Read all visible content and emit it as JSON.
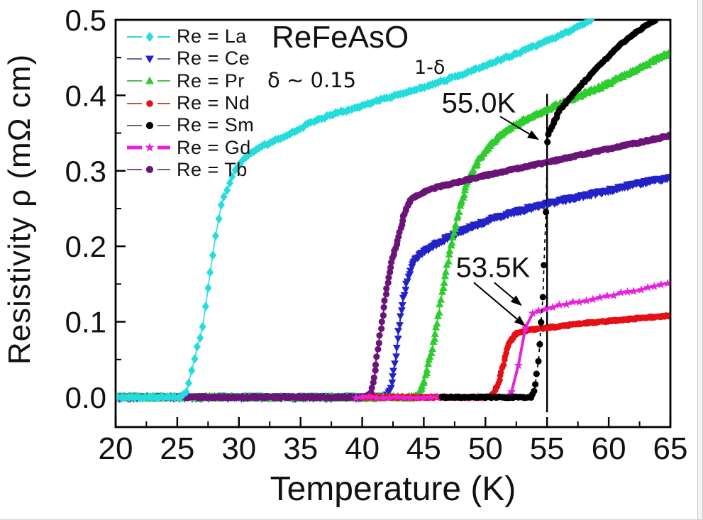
{
  "figure": {
    "title": "ReFeAsO",
    "title_subscript": "1-δ",
    "subtitle": "δ ~ 0.15",
    "background": "#ffffff",
    "frame_color": "#000000"
  },
  "chart_data": {
    "type": "line",
    "title": "ReFeAsO 1-δ, δ ~ 0.15",
    "xlabel": "Temperature (K)",
    "ylabel": "Resistivity ρ (mΩ cm)",
    "xlim": [
      20,
      65
    ],
    "ylim": [
      -0.04,
      0.5
    ],
    "grid": false,
    "legend_position": "upper-left-inside",
    "x_ticks": [
      {
        "label": "20",
        "value": 20
      },
      {
        "label": "25",
        "value": 25
      },
      {
        "label": "30",
        "value": 30
      },
      {
        "label": "35",
        "value": 35
      },
      {
        "label": "40",
        "value": 40
      },
      {
        "label": "45",
        "value": 45
      },
      {
        "label": "50",
        "value": 50
      },
      {
        "label": "55",
        "value": 55
      },
      {
        "label": "60",
        "value": 60
      },
      {
        "label": "65",
        "value": 65
      }
    ],
    "x_minor_ticks": [
      22.5,
      27.5,
      32.5,
      37.5,
      42.5,
      47.5,
      52.5,
      57.5,
      62.5
    ],
    "y_ticks": [
      {
        "label": "0.0",
        "value": 0.0
      },
      {
        "label": "0.1",
        "value": 0.1
      },
      {
        "label": "0.2",
        "value": 0.2
      },
      {
        "label": "0.3",
        "value": 0.3
      },
      {
        "label": "0.4",
        "value": 0.4
      },
      {
        "label": "0.5",
        "value": 0.5
      }
    ],
    "y_minor_ticks": [
      0.05,
      0.15,
      0.25,
      0.35,
      0.45
    ],
    "vline": {
      "x": 55,
      "v_from": -0.02,
      "v_to": 0.402,
      "color": "#000000"
    },
    "annotations": [
      {
        "label": "55.0K",
        "label_pos": [
          49.46,
          0.389
        ],
        "arrows": [
          {
            "from": [
              51.19,
              0.372
            ],
            "to": [
              54.35,
              0.341
            ]
          }
        ]
      },
      {
        "label": "53.5K",
        "label_pos": [
          50.61,
          0.171
        ],
        "arrows": [
          {
            "from": [
              50.72,
              0.152
            ],
            "to": [
              52.97,
              0.121
            ]
          },
          {
            "from": [
              49.06,
              0.152
            ],
            "to": [
              53.26,
              0.094
            ]
          }
        ]
      }
    ],
    "series": [
      {
        "id": "la",
        "label": "Re = La",
        "color": "#25dcdc",
        "marker": "diamond",
        "transition_K": 26,
        "points": [
          [
            20,
            0
          ],
          [
            25.4,
            0
          ],
          [
            25.8,
            0.01
          ],
          [
            26.3,
            0.044
          ],
          [
            26.6,
            0.066
          ],
          [
            27.1,
            0.097
          ],
          [
            27.3,
            0.125
          ],
          [
            27.6,
            0.157
          ],
          [
            27.9,
            0.185
          ],
          [
            28.3,
            0.232
          ],
          [
            28.6,
            0.257
          ],
          [
            28.9,
            0.27
          ],
          [
            29.2,
            0.282
          ],
          [
            29.6,
            0.298
          ],
          [
            30,
            0.307
          ],
          [
            30.4,
            0.317
          ],
          [
            31.2,
            0.326
          ],
          [
            32.1,
            0.334
          ],
          [
            33.1,
            0.341
          ],
          [
            34,
            0.348
          ],
          [
            35.9,
            0.364
          ],
          [
            37.8,
            0.376
          ],
          [
            39.8,
            0.385
          ],
          [
            41.7,
            0.395
          ],
          [
            44,
            0.406
          ],
          [
            46,
            0.416
          ],
          [
            48,
            0.427
          ],
          [
            50,
            0.44
          ],
          [
            52,
            0.452
          ],
          [
            54,
            0.465
          ],
          [
            56,
            0.479
          ],
          [
            57,
            0.487
          ],
          [
            58,
            0.495
          ],
          [
            58.8,
            0.503
          ]
        ]
      },
      {
        "id": "ce",
        "label": "Re = Ce",
        "color": "#2222c8",
        "marker": "triangle-down",
        "transition_K": 42,
        "points": [
          [
            20,
            0
          ],
          [
            41.9,
            0
          ],
          [
            42.3,
            0.01
          ],
          [
            42.6,
            0.04
          ],
          [
            42.9,
            0.08
          ],
          [
            43.2,
            0.115
          ],
          [
            43.5,
            0.143
          ],
          [
            43.8,
            0.163
          ],
          [
            44.1,
            0.176
          ],
          [
            44.5,
            0.186
          ],
          [
            45,
            0.193
          ],
          [
            45.5,
            0.198
          ],
          [
            46,
            0.203
          ],
          [
            47,
            0.212
          ],
          [
            48,
            0.22
          ],
          [
            50,
            0.233
          ],
          [
            52,
            0.244
          ],
          [
            54,
            0.252
          ],
          [
            55,
            0.256
          ],
          [
            56,
            0.26
          ],
          [
            58,
            0.267
          ],
          [
            60,
            0.274
          ],
          [
            62,
            0.282
          ],
          [
            64,
            0.288
          ],
          [
            65,
            0.291
          ]
        ]
      },
      {
        "id": "pr",
        "label": "Re = Pr",
        "color": "#2ecc2e",
        "marker": "triangle-up",
        "transition_K": 44.5,
        "points": [
          [
            20,
            0
          ],
          [
            44.2,
            0
          ],
          [
            44.6,
            0.006
          ],
          [
            45,
            0.02
          ],
          [
            45.4,
            0.045
          ],
          [
            45.8,
            0.075
          ],
          [
            46.2,
            0.11
          ],
          [
            46.6,
            0.15
          ],
          [
            47,
            0.185
          ],
          [
            47.4,
            0.215
          ],
          [
            47.8,
            0.245
          ],
          [
            48.2,
            0.268
          ],
          [
            48.6,
            0.287
          ],
          [
            49,
            0.302
          ],
          [
            49.5,
            0.316
          ],
          [
            50,
            0.327
          ],
          [
            50.5,
            0.336
          ],
          [
            51,
            0.344
          ],
          [
            52,
            0.356
          ],
          [
            53,
            0.366
          ],
          [
            54,
            0.374
          ],
          [
            55,
            0.381
          ],
          [
            56,
            0.388
          ],
          [
            57,
            0.395
          ],
          [
            58,
            0.402
          ],
          [
            59,
            0.409
          ],
          [
            60,
            0.416
          ],
          [
            61,
            0.424
          ],
          [
            62,
            0.432
          ],
          [
            63,
            0.44
          ],
          [
            64,
            0.449
          ],
          [
            65,
            0.457
          ]
        ]
      },
      {
        "id": "nd",
        "label": "Re = Nd",
        "color": "#e51016",
        "marker": "circle",
        "transition_K": 53.5,
        "points": [
          [
            40,
            0
          ],
          [
            50.3,
            0
          ],
          [
            50.7,
            0.006
          ],
          [
            51,
            0.016
          ],
          [
            51.3,
            0.034
          ],
          [
            51.6,
            0.055
          ],
          [
            51.9,
            0.07
          ],
          [
            52.2,
            0.079
          ],
          [
            52.5,
            0.084
          ],
          [
            53,
            0.087
          ],
          [
            53.5,
            0.089
          ],
          [
            54,
            0.09
          ],
          [
            55,
            0.092
          ],
          [
            56,
            0.094
          ],
          [
            58,
            0.098
          ],
          [
            60,
            0.101
          ],
          [
            62,
            0.104
          ],
          [
            64,
            0.107
          ],
          [
            65,
            0.108
          ]
        ]
      },
      {
        "id": "sm",
        "label": "Re = Sm",
        "color": "#000000",
        "marker": "circle",
        "transition_K": 55.0,
        "line_dash": "5 6",
        "points": [
          [
            46.5,
            0
          ],
          [
            53.7,
            0
          ],
          [
            53.95,
            0.008
          ],
          [
            54.1,
            0.02
          ],
          [
            54.25,
            0.04
          ],
          [
            54.4,
            0.065
          ],
          [
            54.5,
            0.09
          ],
          [
            54.6,
            0.115
          ],
          [
            54.7,
            0.145
          ],
          [
            54.78,
            0.175
          ],
          [
            54.85,
            0.21
          ],
          [
            54.9,
            0.245
          ],
          [
            54.94,
            0.275
          ],
          [
            54.97,
            0.305
          ],
          [
            55,
            0.335
          ],
          [
            55.1,
            0.347
          ],
          [
            55.3,
            0.356
          ],
          [
            55.6,
            0.366
          ],
          [
            56,
            0.38
          ],
          [
            57,
            0.4
          ],
          [
            58,
            0.418
          ],
          [
            59,
            0.436
          ],
          [
            60,
            0.452
          ],
          [
            61,
            0.468
          ],
          [
            62,
            0.481
          ],
          [
            63,
            0.492
          ],
          [
            64,
            0.502
          ],
          [
            64.4,
            0.507
          ]
        ]
      },
      {
        "id": "gd",
        "label": "Re = Gd",
        "color": "#e822dc",
        "marker": "star",
        "transition_K": 53.5,
        "points": [
          [
            39.5,
            0
          ],
          [
            51.8,
            0
          ],
          [
            52.1,
            0.006
          ],
          [
            52.4,
            0.018
          ],
          [
            52.7,
            0.042
          ],
          [
            53,
            0.072
          ],
          [
            53.3,
            0.096
          ],
          [
            53.6,
            0.108
          ],
          [
            53.9,
            0.112
          ],
          [
            54.5,
            0.116
          ],
          [
            55,
            0.118
          ],
          [
            56,
            0.122
          ],
          [
            57,
            0.125
          ],
          [
            58,
            0.128
          ],
          [
            59,
            0.131
          ],
          [
            60,
            0.134
          ],
          [
            61,
            0.138
          ],
          [
            62,
            0.141
          ],
          [
            63,
            0.144
          ],
          [
            64,
            0.148
          ],
          [
            65,
            0.151
          ]
        ]
      },
      {
        "id": "tb",
        "label": "Re = Tb",
        "color": "#6b1478",
        "marker": "circle",
        "transition_K": 41,
        "points": [
          [
            20,
            0
          ],
          [
            40.3,
            0
          ],
          [
            40.7,
            0.005
          ],
          [
            41,
            0.03
          ],
          [
            41.3,
            0.065
          ],
          [
            41.6,
            0.1
          ],
          [
            41.9,
            0.135
          ],
          [
            42.2,
            0.163
          ],
          [
            42.5,
            0.185
          ],
          [
            42.8,
            0.203
          ],
          [
            43.1,
            0.222
          ],
          [
            43.4,
            0.242
          ],
          [
            43.7,
            0.255
          ],
          [
            44,
            0.262
          ],
          [
            44.5,
            0.268
          ],
          [
            45,
            0.272
          ],
          [
            46,
            0.278
          ],
          [
            48,
            0.286
          ],
          [
            50,
            0.294
          ],
          [
            52,
            0.301
          ],
          [
            54,
            0.308
          ],
          [
            55,
            0.311
          ],
          [
            56,
            0.315
          ],
          [
            58,
            0.322
          ],
          [
            60,
            0.329
          ],
          [
            62,
            0.336
          ],
          [
            64,
            0.343
          ],
          [
            65,
            0.347
          ]
        ]
      }
    ]
  }
}
